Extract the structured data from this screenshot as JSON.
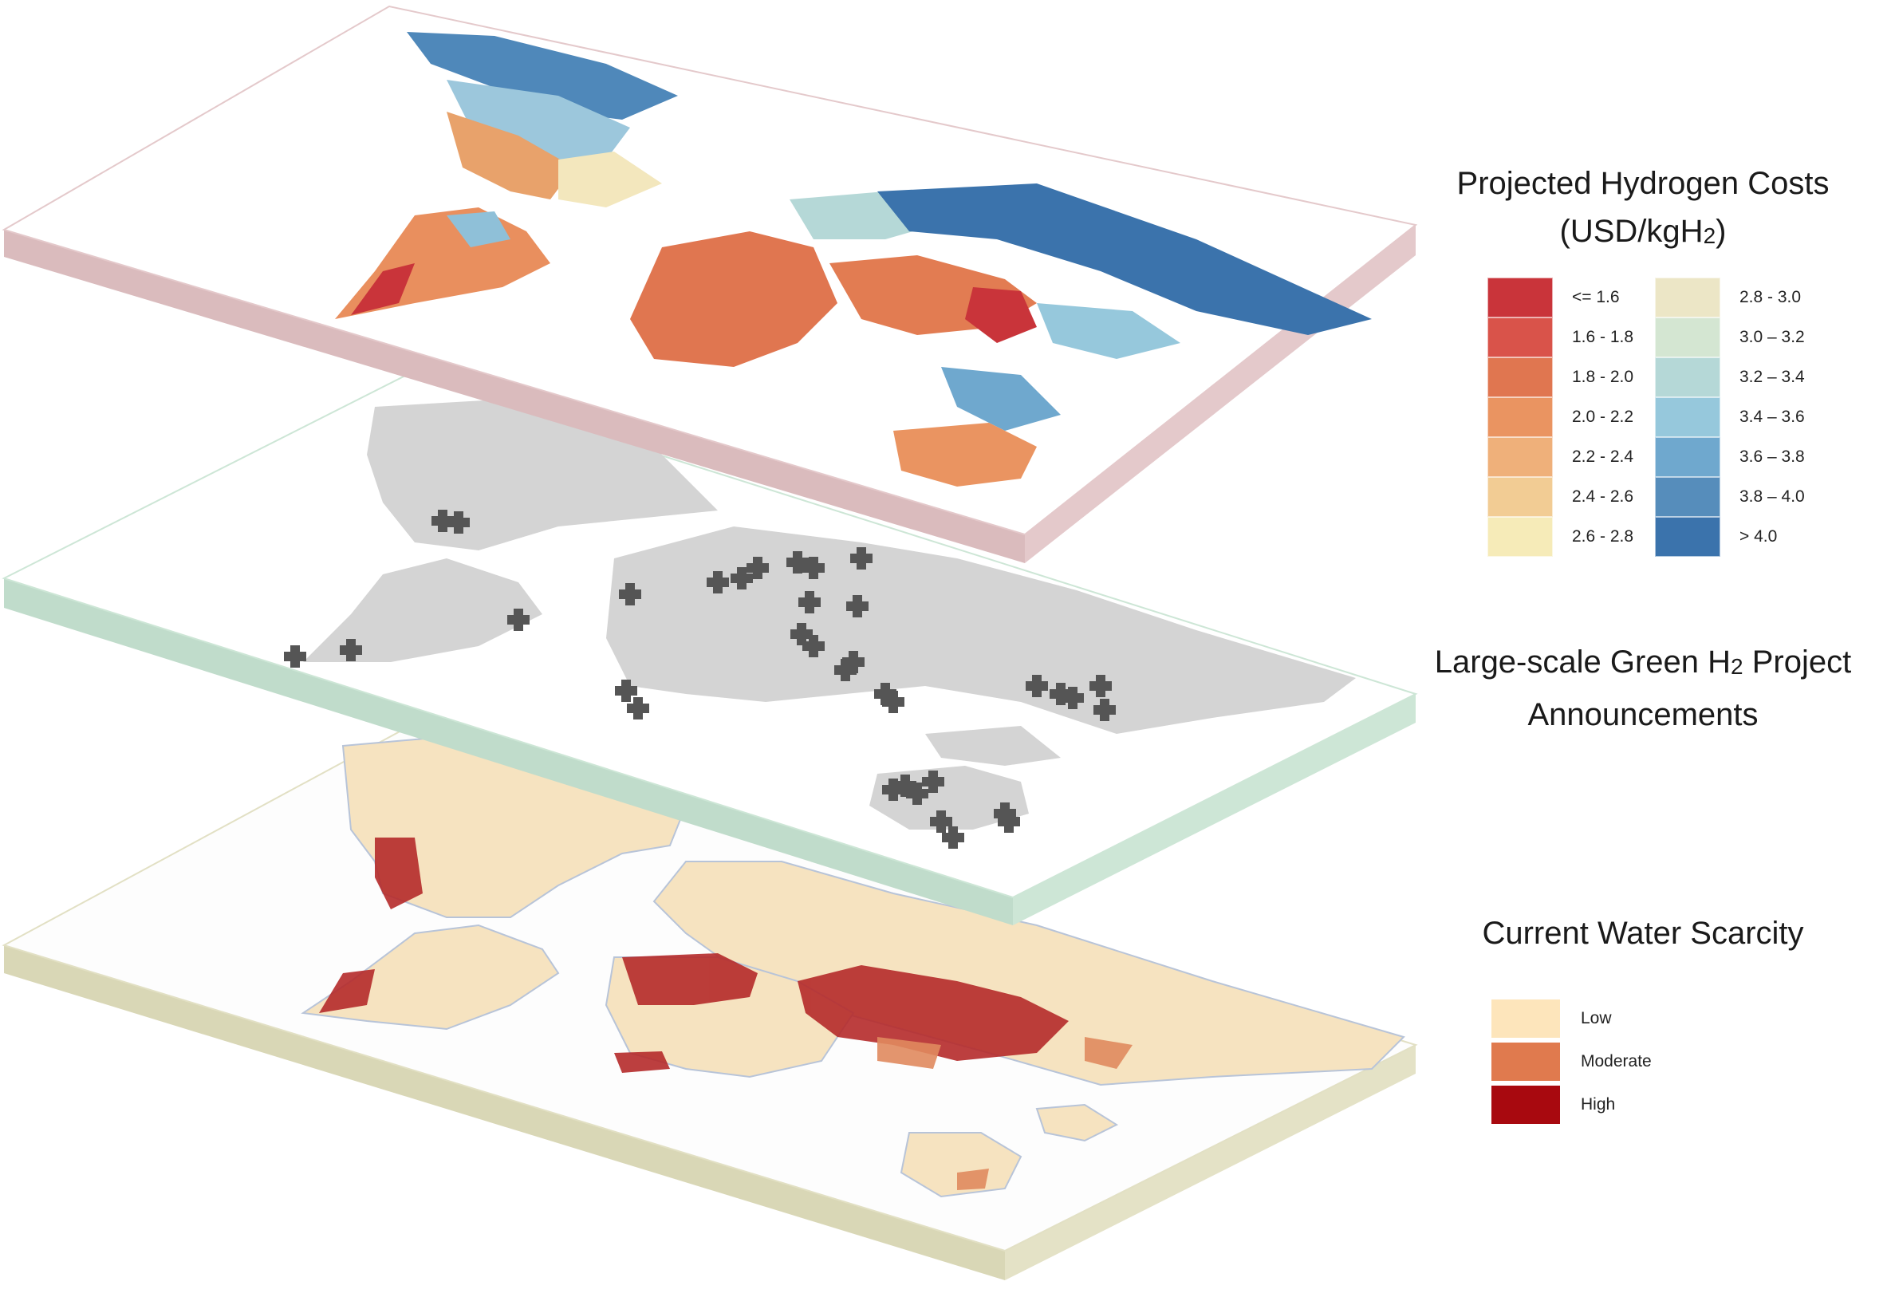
{
  "map_layers": [
    {
      "id": "hydrogen-costs",
      "edge_color": "#d8b8bb",
      "top_rim_color": "#e8cdd0"
    },
    {
      "id": "green-h2-projects",
      "edge_color": "#bcd9c6",
      "top_rim_color": "#d3e8da"
    },
    {
      "id": "water-scarcity",
      "edge_color": "#d7d5b2",
      "top_rim_color": "#e6e4c8"
    }
  ],
  "hydrogen_legend": {
    "title_line1": "Projected Hydrogen Costs",
    "title_line2_prefix": "(USD/kgH",
    "title_line2_sub": "2",
    "title_line2_suffix": ")",
    "left_column": [
      {
        "label": "<= 1.6",
        "color": "#c9343a"
      },
      {
        "label": "1.6 - 1.8",
        "color": "#d9534a"
      },
      {
        "label": "1.8 - 2.0",
        "color": "#e07650"
      },
      {
        "label": "2.0 - 2.2",
        "color": "#ea9461"
      },
      {
        "label": "2.2 - 2.4",
        "color": "#efb07a"
      },
      {
        "label": "2.4 - 2.6",
        "color": "#f2cc94"
      },
      {
        "label": "2.6 - 2.8",
        "color": "#f6ebb8"
      }
    ],
    "right_column": [
      {
        "label": "2.8 - 3.0",
        "color": "#ece6c6"
      },
      {
        "label": "3.0 – 3.2",
        "color": "#d4e6d2"
      },
      {
        "label": "3.2 – 3.4",
        "color": "#b5d8d7"
      },
      {
        "label": "3.4 – 3.6",
        "color": "#96c8dc"
      },
      {
        "label": "3.6 – 3.8",
        "color": "#6fa8ce"
      },
      {
        "label": "3.8 – 4.0",
        "color": "#568dbb"
      },
      {
        "label": "> 4.0",
        "color": "#3b73ac"
      }
    ]
  },
  "projects_legend": {
    "line1_prefix": "Large-scale Green H",
    "line1_sub": "2",
    "line1_suffix": " Project",
    "line2": "Announcements"
  },
  "water_legend": {
    "title": "Current Water Scarcity",
    "items": [
      {
        "label": "Low",
        "color": "#fde5bb"
      },
      {
        "label": "Moderate",
        "color": "#e07a4e"
      },
      {
        "label": "High",
        "color": "#a8090f"
      }
    ]
  }
}
